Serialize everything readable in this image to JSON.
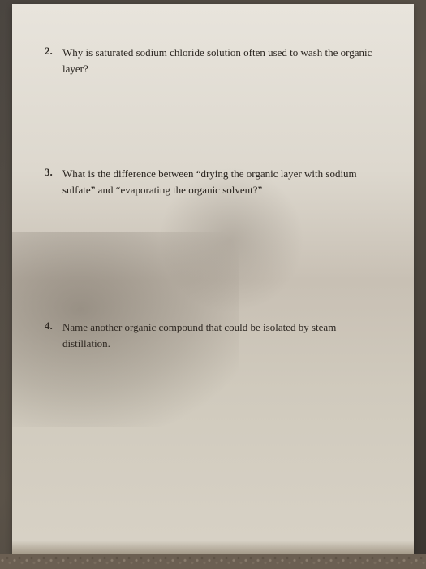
{
  "page": {
    "background_color": "#4a4540",
    "paper_color": "#e0dbd0",
    "text_color": "#2a2520",
    "font_family": "Times New Roman",
    "question_fontsize": 13
  },
  "questions": [
    {
      "number": "2.",
      "text": "Why is saturated sodium chloride solution often used to wash the organic layer?"
    },
    {
      "number": "3.",
      "text": "What is the difference between “drying the organic layer with sodium sulfate” and “evaporating the organic solvent?”"
    },
    {
      "number": "4.",
      "text": "Name another organic compound that could be isolated by steam distillation."
    }
  ]
}
